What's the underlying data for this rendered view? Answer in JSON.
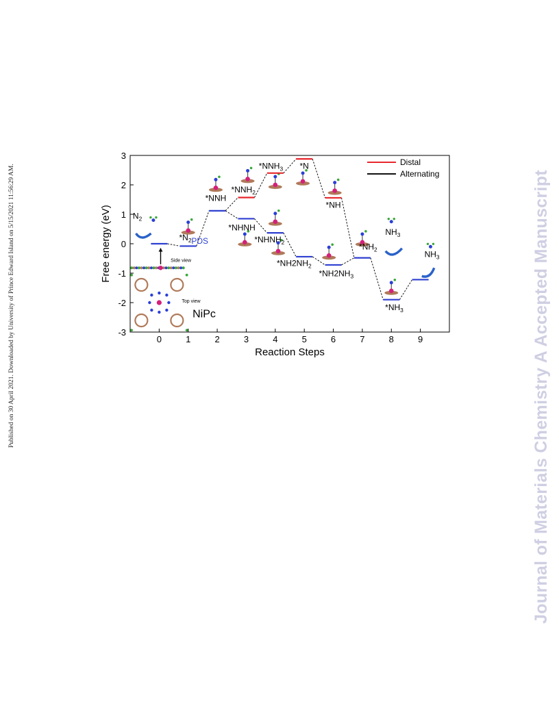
{
  "side_note": "Published on 30 April 2021. Downloaded by University of Prince Edward Island on 5/15/2021 11:56:29 AM.",
  "watermark": "Journal of Materials Chemistry A Accepted Manuscript",
  "chart_data": {
    "type": "line",
    "title": "",
    "xlabel": "Reaction Steps",
    "ylabel": "Free energy (eV)",
    "xlim": [
      -1,
      10
    ],
    "ylim": [
      -3,
      3
    ],
    "xticks": [
      "0",
      "1",
      "2",
      "3",
      "4",
      "5",
      "6",
      "7",
      "8",
      "9"
    ],
    "yticks": [
      "-3",
      "-2",
      "-1",
      "0",
      "1",
      "2",
      "3"
    ],
    "legend_position": "top-right",
    "legend": [
      {
        "name": "Distal",
        "color": "#e8262b"
      },
      {
        "name": "Alternating",
        "color": "#111111"
      }
    ],
    "colors": {
      "shared": "#2d3fd1",
      "distal": "#e8262b",
      "alternating": "#2d3fd1",
      "connector": "#111111"
    },
    "shared_levels": [
      {
        "x": 0,
        "y": 0.0
      },
      {
        "x": 1,
        "y": -0.08
      },
      {
        "x": 2,
        "y": 1.12
      },
      {
        "x": 7,
        "y": -0.48
      },
      {
        "x": 8,
        "y": -1.9
      },
      {
        "x": 9,
        "y": -1.22
      }
    ],
    "distal_levels": [
      {
        "x": 3,
        "y": 1.57
      },
      {
        "x": 4,
        "y": 2.4
      },
      {
        "x": 5,
        "y": 2.88
      },
      {
        "x": 6,
        "y": 1.56
      }
    ],
    "alternating_levels": [
      {
        "x": 3,
        "y": 0.85
      },
      {
        "x": 4,
        "y": 0.37
      },
      {
        "x": 5,
        "y": -0.44
      },
      {
        "x": 6,
        "y": -0.72
      }
    ],
    "labels": [
      {
        "text": "N2",
        "base": "N",
        "sub": "2",
        "x": -0.75,
        "y": 0.85
      },
      {
        "text": "*N2",
        "base": "*N",
        "sub": "2",
        "x": 0.9,
        "y": 0.12
      },
      {
        "text": "PDS",
        "base": "PDS",
        "sub": "",
        "x": 1.4,
        "y": 0.0,
        "color": "#2d3fd1"
      },
      {
        "text": "*NNH",
        "base": "*NNH",
        "sub": "",
        "x": 1.95,
        "y": 1.45
      },
      {
        "text": "*NNH2",
        "base": "*NNH",
        "sub": "2",
        "x": 2.9,
        "y": 1.75
      },
      {
        "text": "*NNH3",
        "base": "*NNH",
        "sub": "3",
        "x": 3.85,
        "y": 2.55
      },
      {
        "text": "*N",
        "base": "*N",
        "sub": "",
        "x": 5.0,
        "y": 2.55
      },
      {
        "text": "*NH",
        "base": "*NH",
        "sub": "",
        "x": 6.0,
        "y": 1.22
      },
      {
        "text": "*NHNH",
        "base": "*NHNH",
        "sub": "",
        "x": 2.85,
        "y": 0.45
      },
      {
        "text": "*NHNH2",
        "base": "*NHNH",
        "sub": "2",
        "x": 3.8,
        "y": 0.05
      },
      {
        "text": "*NH2NH2",
        "base": "*NH2NH",
        "sub": "2",
        "x": 4.65,
        "y": -0.75
      },
      {
        "text": "*NH2NH3",
        "base": "*NH2NH",
        "sub": "3",
        "x": 6.1,
        "y": -1.1
      },
      {
        "text": "*NH2",
        "base": "*NH",
        "sub": "2",
        "x": 7.2,
        "y": -0.2
      },
      {
        "text": "NH3",
        "base": "NH",
        "sub": "3",
        "x": 8.05,
        "y": 0.3
      },
      {
        "text": "*NH3",
        "base": "*NH",
        "sub": "3",
        "x": 8.1,
        "y": -2.25
      },
      {
        "text": "NH3",
        "base": "NH",
        "sub": "3",
        "x": 9.4,
        "y": -0.45
      },
      {
        "text": "NiPc",
        "base": "NiPc",
        "sub": "",
        "x": 1.55,
        "y": -2.5,
        "size": 16
      },
      {
        "text": "Side view",
        "base": "Side view",
        "sub": "",
        "x": 0.75,
        "y": -0.62,
        "size": 7
      },
      {
        "text": "Top view",
        "base": "Top view",
        "sub": "",
        "x": 1.1,
        "y": -2.0,
        "size": 7
      }
    ]
  }
}
